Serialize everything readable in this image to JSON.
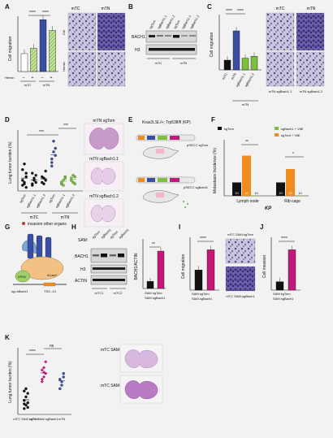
{
  "panel_letters": [
    "A",
    "B",
    "C",
    "D",
    "E",
    "F",
    "G",
    "H",
    "I",
    "J",
    "K"
  ],
  "panelA": {
    "ylabel": "Cell migration",
    "sig1": "****",
    "sig2": "****",
    "xrow_label": "Hemin",
    "xrow": [
      "–",
      "+",
      "–",
      "+"
    ],
    "groups": [
      "mTC",
      "mTN"
    ],
    "img_col_labels": [
      "mTC",
      "mTN"
    ],
    "img_row_labels": [
      "Ctrl",
      "Hemin"
    ]
  },
  "panelB": {
    "lanes": [
      "sgTom",
      "sgBach1.1",
      "sgBach1.2",
      "sgTom",
      "sgBach1.1",
      "sgBach1.2"
    ],
    "blots": [
      "BACH1",
      "H3"
    ],
    "groups": [
      "mTC",
      "mTN"
    ]
  },
  "panelC": {
    "ylabel": "Cell migration",
    "sig1": "****",
    "sig2": "****",
    "xlabels": [
      "mTC",
      "mTN",
      "sgBach1.1",
      "sgBach1.2"
    ],
    "group": "mTN",
    "img_labels": [
      "mTC",
      "mTN",
      "mTN sgBach1.1",
      "mTN sgBach1.2"
    ]
  },
  "panelD": {
    "ylabel": "Lung tumor burden (%)",
    "sig1": "***",
    "sig2": "***",
    "xlabels": [
      "sgTom",
      "sgBach1.1",
      "sgBach1.2",
      "sgTom",
      "sgBach1.1",
      "sgBach1.2"
    ],
    "groups": [
      "mTC",
      "mTN"
    ],
    "legend": "invasion other organs",
    "histo_labels": [
      "mTN sgTom",
      "mTN sgBach1.1",
      "mTN sgBach1.2"
    ]
  },
  "panelE": {
    "title": "Kras2LSL/+; Trp53fl/fl (KP)",
    "vec1": "pSECC sgTom",
    "vec2": "pSECC sgBach1"
  },
  "panelF": {
    "legend": [
      "sgTom",
      "sgBach1 + VitE",
      "sgTom + VitE"
    ],
    "ylabel": "Metastasis Incidence (%)",
    "groups": [
      "Lymph node",
      "Rib cage"
    ],
    "xtitle": "KP",
    "sig1": "**",
    "sig2": "*",
    "bar_labels": [
      "10",
      "10",
      "10",
      "10",
      "10",
      "10"
    ]
  },
  "panelG": {
    "labels": [
      "VP64",
      "dCas9",
      "sg-mBach1",
      "TSS -13"
    ]
  },
  "panelH": {
    "sam_label": "SAM:",
    "lanes": [
      "sgTom",
      "sgBach1",
      "sgTom",
      "sgBach1"
    ],
    "blots": [
      "BACH1",
      "H3",
      "ACTIN"
    ],
    "groups": [
      "mTC1",
      "mTC2"
    ],
    "ylabel": "BACH1/ACTIN",
    "sig": "**",
    "xlabels": [
      "SAM sgTom",
      "SAM sgBach1"
    ]
  },
  "panelI": {
    "ylabel": "Cell migration",
    "sig": "****",
    "xlabels": [
      "SAM sgTom",
      "SAM sgBach1"
    ],
    "img_labels": [
      "mTC SAM-sgTom",
      "mTC SAM-sgBach1"
    ]
  },
  "panelJ": {
    "ylabel": "Cell invasion",
    "sig": "****",
    "xlabels": [
      "SAM sgTom",
      "SAM sgBach1"
    ]
  },
  "panelK": {
    "ylabel": "Lung tumor burden (%)",
    "sig1": "****",
    "sig2": "ns",
    "xlabels": [
      "mTC SAM sgTom",
      "mTC SAM sgBach1",
      "mTN"
    ],
    "histo_labels": [
      "mTC SAM-sgTom",
      "mTC SAM-sgBach1"
    ]
  },
  "colors": {
    "magenta": "#c2187a",
    "blue": "#3a4fa3",
    "green": "#7bbf3a",
    "orange": "#f08c1e",
    "black": "#111111"
  },
  "chart_data": [
    {
      "panel": "A",
      "type": "bar",
      "categories": [
        "mTC",
        "mTC + Hemin",
        "mTN",
        "mTN + Hemin"
      ],
      "values": [
        1.0,
        1.3,
        2.9,
        2.3
      ],
      "ylim": [
        0,
        3
      ]
    },
    {
      "panel": "C",
      "type": "bar",
      "categories": [
        "mTC",
        "mTN",
        "mTN sgBach1.1",
        "mTN sgBach1.2"
      ],
      "values": [
        1.0,
        4.0,
        1.2,
        1.4
      ],
      "ylim": [
        0,
        5
      ]
    },
    {
      "panel": "D",
      "type": "scatter",
      "categories": [
        "mTC sgTom",
        "mTC sgBach1.1",
        "mTC sgBach1.2",
        "mTN sgTom",
        "mTN sgBach1.1",
        "mTN sgBach1.2"
      ],
      "series": [
        {
          "values": [
            [
              8,
              12,
              20,
              30,
              38,
              25,
              15,
              10,
              5
            ],
            [
              10,
              15,
              22,
              8,
              18,
              12,
              25
            ],
            [
              12,
              18,
              28,
              20,
              10,
              15
            ],
            [
              35,
              55,
              60,
              45,
              70,
              50,
              40
            ],
            [
              10,
              15,
              20,
              12,
              8,
              18
            ],
            [
              15,
              12,
              20,
              18,
              22,
              10
            ]
          ]
        }
      ]
    },
    {
      "panel": "F",
      "type": "bar",
      "categories": [
        "Lymph node",
        "Rib cage"
      ],
      "series": [
        {
          "name": "sgTom",
          "values": [
            10,
            10
          ]
        },
        {
          "name": "sgTom + VitE",
          "values": [
            30,
            20
          ]
        },
        {
          "name": "sgBach1 + VitE",
          "values": [
            0,
            0
          ]
        }
      ],
      "ylim": [
        0,
        40
      ]
    },
    {
      "panel": "H",
      "type": "bar",
      "categories": [
        "SAM sgTom",
        "SAM sgBach1"
      ],
      "values": [
        1.0,
        5.3
      ],
      "ylim": [
        0,
        6
      ]
    },
    {
      "panel": "I",
      "type": "bar",
      "categories": [
        "SAM sgTom",
        "SAM sgBach1"
      ],
      "values": [
        1.0,
        2.0
      ],
      "ylim": [
        0,
        2.5
      ]
    },
    {
      "panel": "J",
      "type": "bar",
      "categories": [
        "SAM sgTom",
        "SAM sgBach1"
      ],
      "values": [
        1.0,
        4.8
      ],
      "ylim": [
        0,
        6
      ]
    },
    {
      "panel": "K",
      "type": "scatter",
      "categories": [
        "mTC SAM sgTom",
        "mTC SAM sgBach1",
        "mTN"
      ],
      "series": [
        {
          "values": [
            [
              5,
              8,
              10,
              12,
              15,
              18,
              20,
              22,
              6,
              9
            ],
            [
              28,
              32,
              35,
              38,
              40,
              45,
              30,
              36
            ],
            [
              22,
              28,
              35,
              30,
              25,
              32
            ]
          ]
        }
      ]
    }
  ]
}
